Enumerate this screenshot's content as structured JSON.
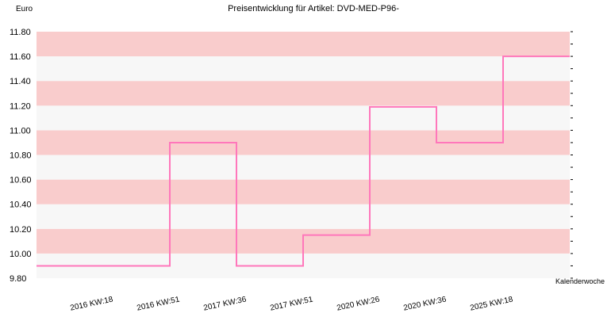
{
  "chart_data": {
    "type": "line",
    "step": true,
    "title": "Preisentwicklung für Artikel: DVD-MED-P96-",
    "ylabel": "Euro",
    "xlabel": "Kalenderwoche",
    "ylim": [
      9.8,
      11.8
    ],
    "yticks": [
      "9.80",
      "10.00",
      "10.20",
      "10.40",
      "10.60",
      "10.80",
      "11.00",
      "11.20",
      "11.40",
      "11.60",
      "11.80"
    ],
    "categories": [
      "2016 KW:18",
      "2016 KW:51",
      "2017 KW:36",
      "2017 KW:51",
      "2020 KW:26",
      "2020 KW:36",
      "2025 KW:18"
    ],
    "series": [
      {
        "values": [
          9.9,
          10.9,
          9.9,
          10.15,
          11.19,
          10.9,
          11.6
        ],
        "color": "#ff77bb"
      }
    ],
    "band_colors": [
      "#f7f7f7",
      "#f9cccc"
    ],
    "grid": true
  }
}
